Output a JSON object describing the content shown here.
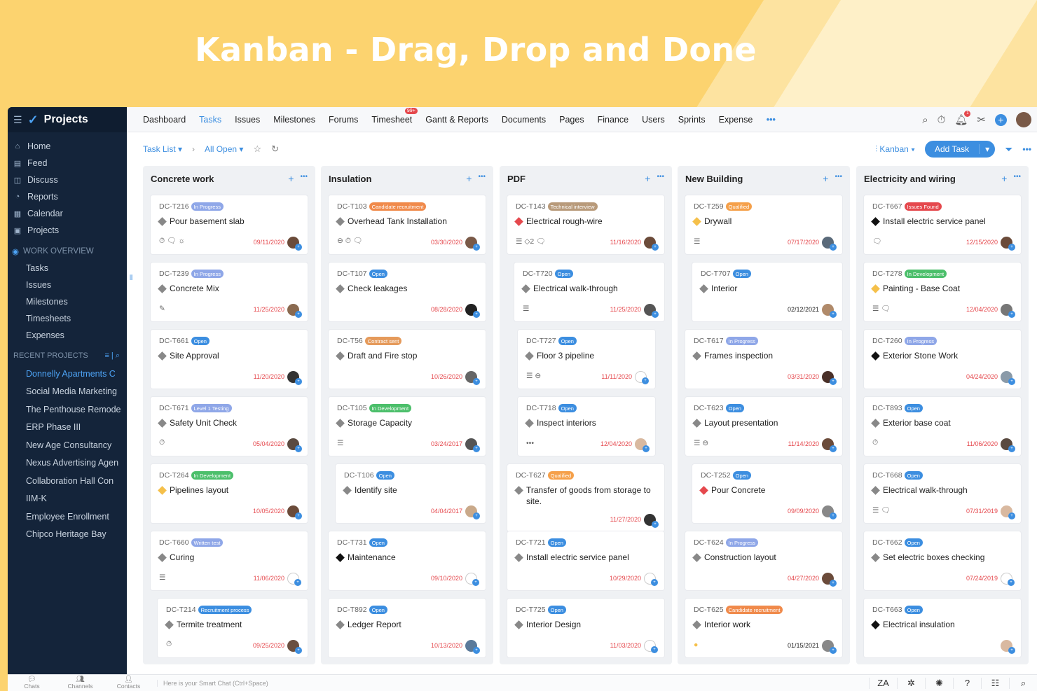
{
  "banner": {
    "title": "Kanban - Drag, Drop and Done"
  },
  "app": {
    "name": "Projects"
  },
  "sidebar": {
    "items": [
      {
        "label": "Home",
        "icon": "home-icon"
      },
      {
        "label": "Feed",
        "icon": "feed-icon"
      },
      {
        "label": "Discuss",
        "icon": "discuss-icon"
      },
      {
        "label": "Reports",
        "icon": "reports-icon"
      },
      {
        "label": "Calendar",
        "icon": "calendar-icon"
      },
      {
        "label": "Projects",
        "icon": "projects-icon"
      }
    ],
    "work_overview": {
      "label": "WORK OVERVIEW",
      "items": [
        "Tasks",
        "Issues",
        "Milestones",
        "Timesheets",
        "Expenses"
      ]
    },
    "recent_label": "RECENT PROJECTS",
    "recent": [
      "Donnelly Apartments C",
      "Social Media Marketing",
      "The Penthouse Remode",
      "ERP Phase III",
      "New Age Consultancy",
      "Nexus Advertising Agen",
      "Collaboration Hall Con",
      "IIM-K",
      "Employee Enrollment",
      "Chipco Heritage Bay"
    ]
  },
  "topnav": {
    "tabs": [
      "Dashboard",
      "Tasks",
      "Issues",
      "Milestones",
      "Forums",
      "Timesheet",
      "Gantt & Reports",
      "Documents",
      "Pages",
      "Finance",
      "Users",
      "Sprints",
      "Expense"
    ],
    "active": "Tasks",
    "timesheet_badge": "99+",
    "more": "•••"
  },
  "toolbar": {
    "task_list": "Task List",
    "filter": "All Open",
    "view": "Kanban",
    "add_task": "Add Task",
    "more": "•••"
  },
  "bottom": {
    "chats": "Chats",
    "channels": "Channels",
    "contacts": "Contacts",
    "smart_chat": "Here is your Smart Chat (Ctrl+Space)"
  },
  "colors": {
    "accent": "#3c8ee0",
    "sidebar": "#14243a",
    "banner": "#fcd36f",
    "overdue": "#e5484d"
  },
  "columns": [
    {
      "title": "Concrete work",
      "cards": [
        {
          "id": "DC-T216",
          "status": "In Progress",
          "sc": "#8fa7e8",
          "title": "Pour basement slab",
          "pri": "#888",
          "icons": "⏱ 🗨 ☼",
          "date": "09/11/2020",
          "av": "#6b4b3a"
        },
        {
          "id": "DC-T239",
          "status": "In Progress",
          "sc": "#8fa7e8",
          "title": "Concrete Mix",
          "pri": "#888",
          "icons": "✎",
          "date": "11/25/2020",
          "av": "#8a6a50"
        },
        {
          "id": "DC-T661",
          "status": "Open",
          "sc": "#3c8ee0",
          "title": "Site Approval",
          "pri": "#888",
          "icons": "",
          "date": "11/20/2020",
          "av": "#333"
        },
        {
          "id": "DC-T671",
          "status": "Level 1 Testing",
          "sc": "#8fa7e8",
          "title": "Safety Unit Check",
          "pri": "#888",
          "icons": "⏱",
          "date": "05/04/2020",
          "av": "#5a4a40"
        },
        {
          "id": "DC-T264",
          "status": "In Development",
          "sc": "#4cbf6b",
          "title": "Pipelines layout",
          "pri": "#f5c04a",
          "icons": "",
          "date": "10/05/2020",
          "av": "#6b4b3a"
        },
        {
          "id": "DC-T660",
          "status": "Written test",
          "sc": "#8fa7e8",
          "title": "Curing",
          "pri": "#888",
          "icons": "☰",
          "date": "11/06/2020",
          "av": "#fff"
        },
        {
          "id": "DC-T214",
          "status": "Recruitment process",
          "sc": "#3c8ee0",
          "title": "Termite treatment",
          "pri": "#888",
          "icons": "⏱",
          "date": "09/25/2020",
          "av": "#6b5040"
        }
      ]
    },
    {
      "title": "Insulation",
      "cards": [
        {
          "id": "DC-T103",
          "status": "Candidate recruitment",
          "sc": "#f08a4b",
          "title": "Overhead Tank Installation",
          "pri": "#888",
          "icons": "⊖ ⏱ 🗨",
          "date": "03/30/2020",
          "av": "#7a5a48"
        },
        {
          "id": "DC-T107",
          "status": "Open",
          "sc": "#3c8ee0",
          "title": "Check leakages",
          "pri": "#888",
          "icons": "",
          "date": "08/28/2020",
          "av": "#222"
        },
        {
          "id": "DC-T56",
          "status": "Contract sent",
          "sc": "#e59a5b",
          "title": "Draft and Fire stop",
          "pri": "#888",
          "icons": "",
          "date": "10/26/2020",
          "av": "#666"
        },
        {
          "id": "DC-T105",
          "status": "In Development",
          "sc": "#4cbf6b",
          "title": "Storage Capacity",
          "pri": "#888",
          "icons": "☰",
          "date": "03/24/2017",
          "av": "#555"
        },
        {
          "id": "DC-T106",
          "status": "Open",
          "sc": "#3c8ee0",
          "title": "Identify site",
          "pri": "#888",
          "icons": "",
          "date": "04/04/2017",
          "av": "#c9a98a"
        },
        {
          "id": "DC-T731",
          "status": "Open",
          "sc": "#3c8ee0",
          "title": "Maintenance",
          "pri": "#111",
          "icons": "",
          "date": "09/10/2020",
          "av": "#fff"
        },
        {
          "id": "DC-T892",
          "status": "Open",
          "sc": "#3c8ee0",
          "title": "Ledger Report",
          "pri": "#888",
          "icons": "",
          "date": "10/13/2020",
          "av": "#5b7a9a"
        }
      ]
    },
    {
      "title": "PDF",
      "cards": [
        {
          "id": "DC-T143",
          "status": "Technical interview",
          "sc": "#b89a7a",
          "title": "Electrical rough-wire",
          "pri": "#e5484d",
          "icons": "☰ ◇2 🗨",
          "date": "11/16/2020",
          "av": "#6b4b3a"
        },
        {
          "id": "DC-T720",
          "status": "Open",
          "sc": "#3c8ee0",
          "title": "Electrical walk-through",
          "pri": "#888",
          "icons": "☰",
          "date": "11/25/2020",
          "av": "#555"
        },
        {
          "id": "DC-T727",
          "status": "Open",
          "sc": "#3c8ee0",
          "title": "Floor 3 pipeline",
          "pri": "#888",
          "icons": "☰ ⊖",
          "date": "11/11/2020",
          "av": "#fff"
        },
        {
          "id": "DC-T718",
          "status": "Open",
          "sc": "#3c8ee0",
          "title": "Inspect interiors",
          "pri": "#888",
          "icons": "•••",
          "date": "12/04/2020",
          "av": "#d9b9a0"
        },
        {
          "id": "DC-T627",
          "status": "Qualified",
          "sc": "#f5a04a",
          "title": "Transfer of goods from storage to site.",
          "pri": "#888",
          "icons": "",
          "date": "11/27/2020",
          "av": "#333"
        },
        {
          "id": "DC-T721",
          "status": "Open",
          "sc": "#3c8ee0",
          "title": "Install electric service panel",
          "pri": "#888",
          "icons": "",
          "date": "10/29/2020",
          "av": "#fff"
        },
        {
          "id": "DC-T725",
          "status": "Open",
          "sc": "#3c8ee0",
          "title": "Interior Design",
          "pri": "#888",
          "icons": "",
          "date": "11/03/2020",
          "av": "#fff"
        }
      ]
    },
    {
      "title": "New Building",
      "cards": [
        {
          "id": "DC-T259",
          "status": "Qualified",
          "sc": "#f5a04a",
          "title": "Drywall",
          "pri": "#f5c04a",
          "icons": "☰",
          "date": "07/17/2020",
          "av": "#5a6a7a"
        },
        {
          "id": "DC-T707",
          "status": "Open",
          "sc": "#3c8ee0",
          "title": "Interior",
          "pri": "#888",
          "icons": "",
          "date": "02/12/2021",
          "av": "#b08a6a",
          "dark": true
        },
        {
          "id": "DC-T617",
          "status": "In Progress",
          "sc": "#8fa7e8",
          "title": "Frames inspection",
          "pri": "#888",
          "icons": "",
          "date": "03/31/2020",
          "av": "#4a3028"
        },
        {
          "id": "DC-T623",
          "status": "Open",
          "sc": "#3c8ee0",
          "title": "Layout presentation",
          "pri": "#888",
          "icons": "☰ ⊖",
          "date": "11/14/2020",
          "av": "#6b4b3a"
        },
        {
          "id": "DC-T252",
          "status": "Open",
          "sc": "#3c8ee0",
          "title": "Pour Concrete",
          "pri": "#e5484d",
          "icons": "",
          "date": "09/09/2020",
          "av": "#888"
        },
        {
          "id": "DC-T624",
          "status": "In Progress",
          "sc": "#8fa7e8",
          "title": "Construction layout",
          "pri": "#888",
          "icons": "",
          "date": "04/27/2020",
          "av": "#6b4b3a"
        },
        {
          "id": "DC-T625",
          "status": "Candidate recruitment",
          "sc": "#f08a4b",
          "title": "Interior work",
          "pri": "#888",
          "icons": "●",
          "date": "01/15/2021",
          "av": "#888",
          "dark": true
        }
      ]
    },
    {
      "title": "Electricity and wiring",
      "cards": [
        {
          "id": "DC-T667",
          "status": "Issues Found",
          "sc": "#e5484d",
          "title": "Install electric service panel",
          "pri": "#111",
          "icons": "🗨",
          "date": "12/15/2020",
          "av": "#6b4b3a"
        },
        {
          "id": "DC-T278",
          "status": "In Development",
          "sc": "#4cbf6b",
          "title": "Painting - Base Coat",
          "pri": "#f5c04a",
          "icons": "☰ 🗨",
          "date": "12/04/2020",
          "av": "#777"
        },
        {
          "id": "DC-T260",
          "status": "In Progress",
          "sc": "#8fa7e8",
          "title": "Exterior Stone Work",
          "pri": "#111",
          "icons": "",
          "date": "04/24/2020",
          "av": "#8a9aa8"
        },
        {
          "id": "DC-T893",
          "status": "Open",
          "sc": "#3c8ee0",
          "title": "Exterior base coat",
          "pri": "#888",
          "icons": "⏱",
          "date": "11/06/2020",
          "av": "#5a4a40"
        },
        {
          "id": "DC-T668",
          "status": "Open",
          "sc": "#3c8ee0",
          "title": "Electrical walk-through",
          "pri": "#888",
          "icons": "☰ 🗨",
          "date": "07/31/2019",
          "av": "#d9b9a0"
        },
        {
          "id": "DC-T662",
          "status": "Open",
          "sc": "#3c8ee0",
          "title": "Set electric boxes checking",
          "pri": "#888",
          "icons": "",
          "date": "07/24/2019",
          "av": "#fff"
        },
        {
          "id": "DC-T663",
          "status": "Open",
          "sc": "#3c8ee0",
          "title": "Electrical insulation",
          "pri": "#111",
          "icons": "",
          "date": "",
          "av": "#d9b9a0"
        }
      ]
    }
  ]
}
